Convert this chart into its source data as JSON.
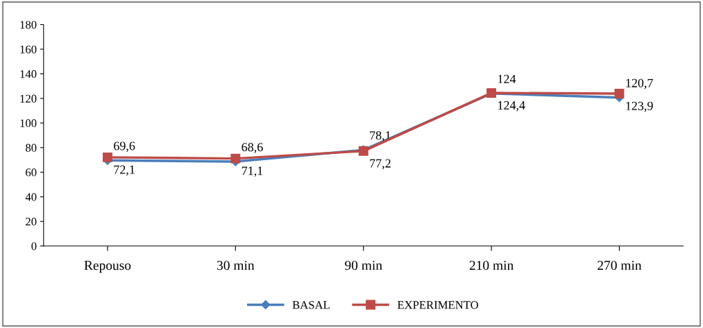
{
  "chart_data": {
    "type": "line",
    "categories": [
      "Repouso",
      "30 min",
      "90 min",
      "210 min",
      "270 min"
    ],
    "series": [
      {
        "name": "BASAL",
        "color": "#4a7ebb",
        "marker": "diamond",
        "values": [
          69.6,
          68.6,
          78.1,
          124,
          120.7
        ],
        "value_labels": [
          "69,6",
          "68,6",
          "78,1",
          "124",
          "120,7"
        ]
      },
      {
        "name": "EXPERIMENTO",
        "color": "#be4b48",
        "marker": "square",
        "values": [
          72.1,
          71.1,
          77.2,
          124.4,
          123.9
        ],
        "value_labels": [
          "72,1",
          "71,1",
          "77,2",
          "124,4",
          "123,9"
        ]
      }
    ],
    "ylim": [
      0,
      180
    ],
    "yticks": [
      0,
      20,
      40,
      60,
      80,
      100,
      120,
      140,
      160,
      180
    ],
    "grid": false,
    "legend": "bottom"
  }
}
